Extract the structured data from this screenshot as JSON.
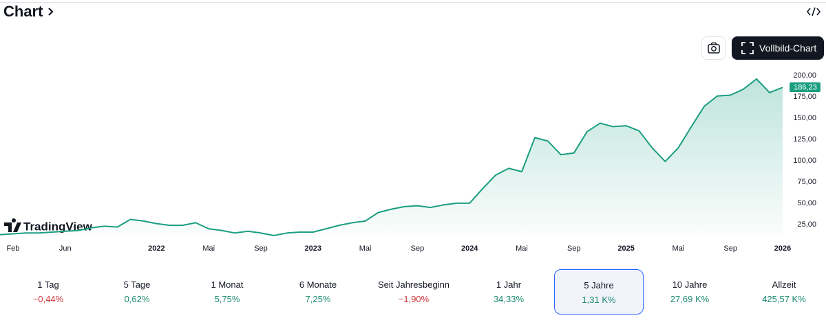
{
  "header": {
    "title": "Chart"
  },
  "toolbar": {
    "fullscreen_button": "Vollbild-Chart"
  },
  "logo": "TradingView",
  "chart_data": {
    "type": "area",
    "color": "#1a9e80",
    "x": [
      "2021-01",
      "2021-02",
      "2021-03",
      "2021-04",
      "2021-05",
      "2021-06",
      "2021-07",
      "2021-08",
      "2021-09",
      "2021-10",
      "2021-11",
      "2021-12",
      "2022-01",
      "2022-02",
      "2022-03",
      "2022-04",
      "2022-05",
      "2022-06",
      "2022-07",
      "2022-08",
      "2022-09",
      "2022-10",
      "2022-11",
      "2022-12",
      "2023-01",
      "2023-02",
      "2023-03",
      "2023-04",
      "2023-05",
      "2023-06",
      "2023-07",
      "2023-08",
      "2023-09",
      "2023-10",
      "2023-11",
      "2023-12",
      "2024-01",
      "2024-02",
      "2024-03",
      "2024-04",
      "2024-05",
      "2024-06",
      "2024-07",
      "2024-08",
      "2024-09",
      "2024-10",
      "2024-11",
      "2024-12",
      "2025-01",
      "2025-02",
      "2025-03",
      "2025-04",
      "2025-05",
      "2025-06",
      "2025-07",
      "2025-08",
      "2025-09",
      "2025-10",
      "2025-11",
      "2025-12",
      "2026-01"
    ],
    "values": [
      13,
      14,
      15,
      15,
      16,
      17,
      18,
      21,
      23,
      22,
      31,
      29,
      26,
      24,
      24,
      27,
      20,
      18,
      15,
      17,
      15,
      12,
      15,
      16,
      16,
      20,
      24,
      27,
      29,
      39,
      43,
      46,
      47,
      45,
      48,
      50,
      50,
      67,
      83,
      91,
      87,
      127,
      123,
      107,
      109,
      134,
      144,
      140,
      141,
      135,
      115,
      99,
      115,
      140,
      164,
      176,
      177,
      184,
      196,
      180,
      186
    ],
    "xlim": [
      "2021-01",
      "2026-01"
    ],
    "xticks": [
      {
        "value": "2021-02",
        "label": "Feb"
      },
      {
        "value": "2021-06",
        "label": "Jun"
      },
      {
        "value": "2022-01",
        "label": "2022"
      },
      {
        "value": "2022-05",
        "label": "Mai"
      },
      {
        "value": "2022-09",
        "label": "Sep"
      },
      {
        "value": "2023-01",
        "label": "2023"
      },
      {
        "value": "2023-05",
        "label": "Mai"
      },
      {
        "value": "2023-09",
        "label": "Sep"
      },
      {
        "value": "2024-01",
        "label": "2024"
      },
      {
        "value": "2024-05",
        "label": "Mai"
      },
      {
        "value": "2024-09",
        "label": "Sep"
      },
      {
        "value": "2025-01",
        "label": "2025"
      },
      {
        "value": "2025-05",
        "label": "Mai"
      },
      {
        "value": "2025-09",
        "label": "Sep"
      },
      {
        "value": "2026-01",
        "label": "2026"
      }
    ],
    "ylim": [
      12,
      210
    ],
    "yticks": [
      {
        "value": 25,
        "label": "25,00"
      },
      {
        "value": 50,
        "label": "50,00"
      },
      {
        "value": 75,
        "label": "75,00"
      },
      {
        "value": 100,
        "label": "100,00"
      },
      {
        "value": 125,
        "label": "125,00"
      },
      {
        "value": 150,
        "label": "150,00"
      },
      {
        "value": 175,
        "label": "175,00"
      },
      {
        "value": 200,
        "label": "200,00"
      }
    ],
    "last_value": 186.23,
    "last_value_label": "186,23"
  },
  "periods": {
    "selected_index": 6,
    "items": [
      {
        "label": "1 Tag",
        "change": "−0,44%",
        "color": "#d0343c"
      },
      {
        "label": "5 Tage",
        "change": "0,62%",
        "color": "#1a8a6e"
      },
      {
        "label": "1 Monat",
        "change": "5,75%",
        "color": "#1a8a6e"
      },
      {
        "label": "6 Monate",
        "change": "7,25%",
        "color": "#1a8a6e"
      },
      {
        "label": "Seit Jahresbeginn",
        "change": "−1,90%",
        "color": "#d0343c"
      },
      {
        "label": "1 Jahr",
        "change": "34,33%",
        "color": "#1a8a6e"
      },
      {
        "label": "5 Jahre",
        "change": "1,31 K%",
        "color": "#1a8a6e"
      },
      {
        "label": "10 Jahre",
        "change": "27,69 K%",
        "color": "#1a8a6e"
      },
      {
        "label": "Allzeit",
        "change": "425,57 K%",
        "color": "#1a8a6e"
      }
    ]
  }
}
